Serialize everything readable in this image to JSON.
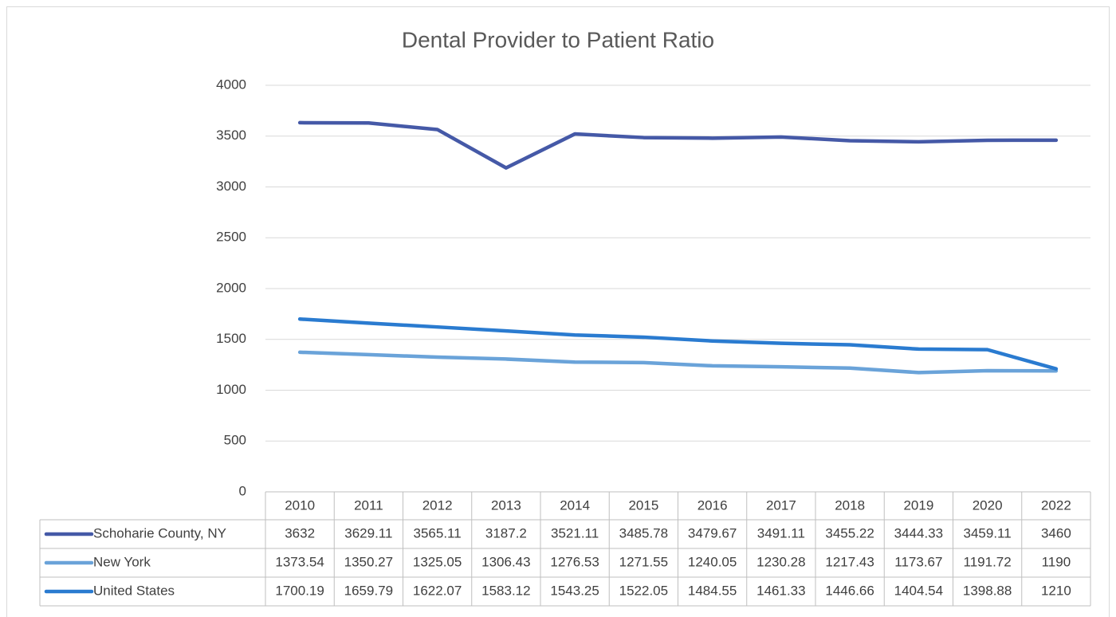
{
  "chart_data": {
    "type": "line",
    "title": "Dental Provider to Patient Ratio",
    "categories": [
      "2010",
      "2011",
      "2012",
      "2013",
      "2014",
      "2015",
      "2016",
      "2017",
      "2018",
      "2019",
      "2020",
      "2022"
    ],
    "series": [
      {
        "name": "Schoharie County, NY",
        "color": "#4559a7",
        "values": [
          3632,
          3629.11,
          3565.11,
          3187.2,
          3521.11,
          3485.78,
          3479.67,
          3491.11,
          3455.22,
          3444.33,
          3459.11,
          3460
        ]
      },
      {
        "name": "New York",
        "color": "#6aa3d9",
        "values": [
          1373.54,
          1350.27,
          1325.05,
          1306.43,
          1276.53,
          1271.55,
          1240.05,
          1230.28,
          1217.43,
          1173.67,
          1191.72,
          1190
        ]
      },
      {
        "name": "United States",
        "color": "#2a7bd0",
        "values": [
          1700.19,
          1659.79,
          1622.07,
          1583.12,
          1543.25,
          1522.05,
          1484.55,
          1461.33,
          1446.66,
          1404.54,
          1398.88,
          1210
        ]
      }
    ],
    "ylim": [
      0,
      4000
    ],
    "yticks": [
      0,
      500,
      1000,
      1500,
      2000,
      2500,
      3000,
      3500,
      4000
    ],
    "grid": true
  }
}
